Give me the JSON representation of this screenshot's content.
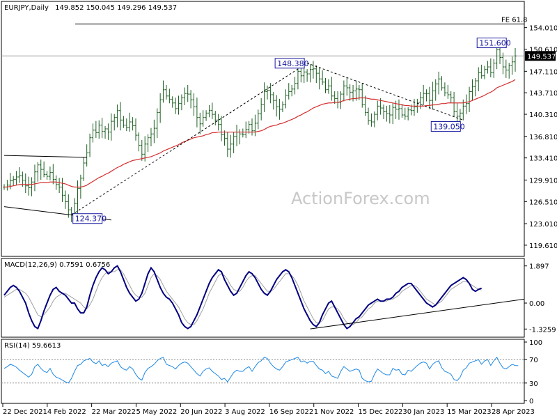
{
  "chart_data": {
    "type": "candlestick",
    "symbol_header": "EURJPY,Daily",
    "ohlc_header": "149.852 150.045 149.296 149.537",
    "watermark": "ActionForex.com",
    "last_price_label": "149.537",
    "x_tick_labels": [
      "22 Dec 2021",
      "4 Feb 2022",
      "22 Mar 2022",
      "5 May 2022",
      "20 Jun 2022",
      "3 Aug 2022",
      "16 Sep 2022",
      "1 Nov 2022",
      "15 Dec 2022",
      "30 Jan 2023",
      "15 Mar 2023",
      "28 Apr 2023"
    ],
    "price_panel": {
      "ylim": [
        118.5,
        157.5
      ],
      "y_tick_labels": [
        {
          "v": 154.01,
          "t": "154.010"
        },
        {
          "v": 150.61,
          "t": "150.610"
        },
        {
          "v": 147.11,
          "t": "147.110"
        },
        {
          "v": 143.71,
          "t": "143.710"
        },
        {
          "v": 140.31,
          "t": "140.310"
        },
        {
          "v": 136.81,
          "t": "136.810"
        },
        {
          "v": 133.41,
          "t": "133.410"
        },
        {
          "v": 129.91,
          "t": "129.910"
        },
        {
          "v": 126.51,
          "t": "126.510"
        },
        {
          "v": 123.01,
          "t": "123.010"
        },
        {
          "v": 119.61,
          "t": "119.610"
        }
      ],
      "close": [
        128.8,
        129.1,
        129.8,
        130.0,
        130.4,
        130.6,
        129.9,
        129.0,
        128.7,
        129.6,
        131.2,
        132.3,
        131.6,
        130.8,
        130.5,
        131.1,
        130.0,
        129.2,
        128.8,
        127.5,
        126.5,
        125.2,
        124.6,
        126.2,
        128.6,
        130.2,
        132.6,
        134.2,
        136.6,
        137.8,
        137.4,
        138.6,
        137.6,
        138.0,
        137.5,
        139.2,
        139.8,
        140.9,
        139.4,
        138.6,
        138.2,
        139.1,
        138.5,
        137.0,
        135.4,
        134.0,
        135.6,
        136.6,
        137.2,
        138.1,
        140.6,
        142.6,
        144.2,
        143.2,
        142.7,
        142.1,
        141.2,
        142.0,
        142.9,
        143.6,
        143.5,
        142.6,
        141.5,
        139.8,
        138.8,
        139.8,
        140.5,
        140.9,
        140.3,
        139.4,
        138.7,
        137.1,
        136.5,
        134.8,
        135.6,
        136.8,
        137.5,
        137.2,
        137.1,
        137.9,
        138.7,
        137.7,
        138.9,
        140.4,
        141.8,
        143.9,
        144.1,
        143.4,
        142.5,
        141.5,
        141.1,
        141.8,
        143.3,
        143.9,
        144.3,
        145.2,
        147.1,
        146.4,
        147.0,
        146.7,
        147.4,
        147.5,
        146.8,
        145.9,
        145.4,
        144.2,
        144.8,
        143.2,
        142.8,
        142.2,
        143.5,
        144.8,
        144.5,
        143.8,
        144.0,
        144.3,
        144.2,
        141.8,
        140.6,
        139.3,
        139.1,
        140.3,
        141.6,
        141.3,
        140.7,
        140.4,
        140.2,
        141.4,
        141.1,
        141.2,
        140.2,
        140.0,
        141.0,
        140.9,
        141.5,
        142.2,
        142.9,
        143.6,
        143.6,
        142.5,
        144.0,
        145.1,
        145.9,
        144.5,
        143.7,
        143.4,
        142.9,
        140.7,
        140.0,
        140.5,
        141.6,
        142.0,
        143.9,
        144.7,
        145.6,
        146.9,
        146.4,
        147.4,
        147.8,
        146.9,
        148.4,
        150.5,
        149.3,
        147.8,
        147.3,
        148.0,
        148.6,
        149.537
      ],
      "ma_red": [
        128.8,
        128.8,
        128.9,
        129.0,
        129.1,
        129.2,
        129.2,
        129.2,
        129.2,
        129.2,
        129.3,
        129.4,
        129.5,
        129.5,
        129.5,
        129.6,
        129.6,
        129.6,
        129.5,
        129.4,
        129.3,
        129.1,
        128.9,
        128.8,
        128.8,
        128.8,
        128.9,
        129.1,
        129.4,
        129.7,
        130.0,
        130.3,
        130.5,
        130.8,
        131.0,
        131.3,
        131.6,
        131.9,
        132.1,
        132.4,
        132.6,
        132.8,
        133.0,
        133.1,
        133.2,
        133.3,
        133.4,
        133.5,
        133.6,
        133.8,
        134.0,
        134.2,
        134.5,
        134.7,
        134.9,
        135.1,
        135.3,
        135.5,
        135.8,
        136.0,
        136.2,
        136.4,
        136.6,
        136.7,
        136.8,
        136.9,
        137.1,
        137.2,
        137.4,
        137.4,
        137.5,
        137.5,
        137.5,
        137.5,
        137.5,
        137.5,
        137.5,
        137.5,
        137.5,
        137.5,
        137.5,
        137.5,
        137.5,
        137.6,
        137.7,
        137.9,
        138.2,
        138.4,
        138.5,
        138.6,
        138.8,
        138.9,
        139.1,
        139.3,
        139.5,
        139.7,
        140.0,
        140.2,
        140.5,
        140.7,
        141.0,
        141.3,
        141.5,
        141.7,
        141.9,
        142.0,
        142.1,
        142.1,
        142.2,
        142.2,
        142.3,
        142.5,
        142.6,
        142.7,
        142.8,
        142.8,
        142.9,
        142.9,
        142.9,
        142.8,
        142.7,
        142.7,
        142.6,
        142.5,
        142.4,
        142.3,
        142.2,
        142.1,
        142.0,
        141.9,
        141.8,
        141.7,
        141.7,
        141.6,
        141.6,
        141.6,
        141.6,
        141.6,
        141.7,
        141.7,
        141.8,
        141.8,
        141.9,
        142.0,
        142.0,
        142.1,
        142.1,
        142.1,
        142.1,
        142.1,
        142.1,
        142.2,
        142.3,
        142.5,
        142.7,
        142.9,
        143.1,
        143.3,
        143.6,
        143.8,
        144.1,
        144.5,
        144.7,
        144.9,
        145.1,
        145.3,
        145.5,
        145.8
      ],
      "horizontal_levels": [
        {
          "value": 154.6,
          "label": "FE 61.8"
        },
        {
          "value": 149.537,
          "label": ""
        }
      ],
      "annotations": [
        {
          "text": "151.600",
          "value": 151.6,
          "index": 165
        },
        {
          "text": "148.380",
          "value": 148.38,
          "index": 99
        },
        {
          "text": "139.050",
          "value": 139.05,
          "index": 150
        },
        {
          "text": "124.370",
          "value": 124.37,
          "index": 22
        }
      ],
      "trendlines": [
        {
          "style": "solid",
          "from": [
            0,
            133.8
          ],
          "to": [
            27,
            133.5
          ]
        },
        {
          "style": "solid",
          "from": [
            0,
            125.7
          ],
          "to": [
            35,
            123.6
          ]
        },
        {
          "style": "dashed",
          "from": [
            22,
            124.4
          ],
          "to": [
            99,
            148.4
          ]
        },
        {
          "style": "dashed",
          "from": [
            99,
            148.4
          ],
          "to": [
            150,
            139.4
          ]
        }
      ]
    },
    "macd_panel": {
      "title": "MACD(12,26,9) 0.7591 0.6756",
      "ylim": [
        -1.6,
        2.1
      ],
      "y_tick_labels": [
        {
          "v": 1.897,
          "t": "1.897"
        },
        {
          "v": 0.0,
          "t": "0.00"
        },
        {
          "v": -1.3259,
          "t": "-1.3259"
        }
      ],
      "macd": [
        0.4,
        0.6,
        0.8,
        0.9,
        0.8,
        0.6,
        0.3,
        0.0,
        -0.5,
        -0.9,
        -1.2,
        -1.3,
        -0.9,
        -0.4,
        0.0,
        0.4,
        0.7,
        0.8,
        0.6,
        0.5,
        0.4,
        0.2,
        0.0,
        0.0,
        -0.3,
        -0.5,
        -0.5,
        -0.2,
        0.4,
        0.9,
        1.3,
        1.6,
        1.8,
        1.7,
        1.5,
        1.6,
        1.8,
        1.9,
        1.6,
        1.2,
        0.8,
        0.5,
        0.3,
        0.1,
        0.2,
        0.5,
        1.0,
        1.5,
        1.8,
        1.6,
        1.2,
        0.8,
        0.5,
        0.3,
        0.2,
        0.0,
        -0.3,
        -0.6,
        -1.0,
        -1.2,
        -1.3,
        -1.2,
        -0.9,
        -0.6,
        -0.2,
        0.2,
        0.6,
        1.0,
        1.3,
        1.5,
        1.7,
        1.6,
        1.2,
        0.9,
        0.6,
        0.4,
        0.5,
        0.8,
        1.1,
        1.4,
        1.6,
        1.5,
        1.3,
        1.0,
        0.7,
        0.5,
        0.4,
        0.6,
        0.9,
        1.2,
        1.4,
        1.6,
        1.7,
        1.6,
        1.3,
        0.9,
        0.5,
        0.1,
        -0.3,
        -0.6,
        -0.9,
        -1.1,
        -1.2,
        -1.0,
        -0.6,
        -0.3,
        0.0,
        0.1,
        -0.2,
        -0.5,
        -0.8,
        -1.1,
        -1.3,
        -1.2,
        -1.0,
        -0.8,
        -0.7,
        -0.5,
        -0.3,
        -0.1,
        0.0,
        0.1,
        0.2,
        0.1,
        0.1,
        0.2,
        0.2,
        0.3,
        0.5,
        0.6,
        0.8,
        0.9,
        1.0,
        1.0,
        0.8,
        0.6,
        0.4,
        0.2,
        0.0,
        -0.1,
        -0.2,
        -0.1,
        0.1,
        0.3,
        0.5,
        0.7,
        0.9,
        1.0,
        1.1,
        1.2,
        1.3,
        1.2,
        1.0,
        0.7,
        0.6,
        0.7,
        0.76
      ],
      "signal": [
        0.3,
        0.4,
        0.5,
        0.6,
        0.7,
        0.7,
        0.6,
        0.5,
        0.3,
        0.0,
        -0.3,
        -0.6,
        -0.7,
        -0.6,
        -0.4,
        -0.2,
        0.1,
        0.3,
        0.4,
        0.5,
        0.5,
        0.4,
        0.3,
        0.2,
        0.1,
        0.0,
        -0.2,
        -0.3,
        -0.1,
        0.2,
        0.6,
        1.0,
        1.3,
        1.5,
        1.6,
        1.6,
        1.6,
        1.7,
        1.7,
        1.5,
        1.2,
        0.9,
        0.6,
        0.4,
        0.3,
        0.3,
        0.5,
        0.9,
        1.3,
        1.5,
        1.4,
        1.2,
        0.9,
        0.6,
        0.4,
        0.2,
        0.0,
        -0.2,
        -0.5,
        -0.8,
        -1.0,
        -1.1,
        -1.1,
        -0.9,
        -0.6,
        -0.3,
        0.1,
        0.5,
        0.8,
        1.1,
        1.4,
        1.5,
        1.4,
        1.2,
        0.9,
        0.7,
        0.6,
        0.6,
        0.8,
        1.1,
        1.3,
        1.4,
        1.4,
        1.2,
        1.0,
        0.8,
        0.6,
        0.6,
        0.7,
        0.9,
        1.1,
        1.3,
        1.5,
        1.5,
        1.4,
        1.2,
        0.9,
        0.5,
        0.1,
        -0.2,
        -0.5,
        -0.8,
        -1.0,
        -1.0,
        -0.9,
        -0.6,
        -0.3,
        -0.2,
        -0.2,
        -0.3,
        -0.5,
        -0.8,
        -1.0,
        -1.1,
        -1.1,
        -1.0,
        -0.8,
        -0.7,
        -0.5,
        -0.3,
        -0.2,
        0.0,
        0.1,
        0.1,
        0.1,
        0.1,
        0.2,
        0.2,
        0.3,
        0.4,
        0.6,
        0.7,
        0.8,
        0.9,
        0.9,
        0.8,
        0.6,
        0.4,
        0.2,
        0.1,
        0.0,
        -0.1,
        0.0,
        0.1,
        0.3,
        0.5,
        0.7,
        0.8,
        0.9,
        1.0,
        1.1,
        1.1,
        1.0,
        0.9,
        0.8,
        0.7,
        0.6756
      ],
      "trendlines": [
        {
          "style": "solid",
          "from": [
            100,
            -1.32
          ],
          "to": [
            173,
            0.2
          ]
        }
      ]
    },
    "rsi_panel": {
      "title": "RSI(14) 59.6613",
      "ylim": [
        0,
        100
      ],
      "y_tick_labels": [
        {
          "v": 100,
          "t": "100"
        },
        {
          "v": 70,
          "t": "70"
        },
        {
          "v": 30,
          "t": "30"
        },
        {
          "v": 0,
          "t": "0"
        }
      ],
      "levels": [
        70,
        30
      ],
      "rsi": [
        55,
        58,
        62,
        60,
        57,
        52,
        48,
        44,
        40,
        45,
        58,
        62,
        55,
        50,
        48,
        55,
        45,
        40,
        38,
        35,
        32,
        30,
        38,
        50,
        60,
        62,
        68,
        70,
        72,
        66,
        63,
        68,
        60,
        62,
        58,
        64,
        66,
        68,
        58,
        54,
        52,
        58,
        54,
        45,
        38,
        35,
        48,
        55,
        58,
        62,
        68,
        72,
        74,
        62,
        60,
        58,
        54,
        60,
        64,
        66,
        64,
        58,
        52,
        46,
        42,
        50,
        54,
        56,
        50,
        46,
        42,
        36,
        38,
        32,
        40,
        48,
        52,
        50,
        50,
        55,
        58,
        50,
        58,
        65,
        68,
        74,
        72,
        64,
        58,
        54,
        52,
        58,
        66,
        68,
        70,
        72,
        74,
        66,
        68,
        64,
        67,
        67,
        60,
        54,
        52,
        46,
        50,
        42,
        40,
        38,
        50,
        58,
        54,
        50,
        52,
        54,
        52,
        38,
        34,
        32,
        33,
        45,
        54,
        50,
        46,
        44,
        44,
        55,
        52,
        53,
        45,
        44,
        52,
        50,
        55,
        60,
        64,
        66,
        64,
        54,
        62,
        66,
        68,
        56,
        50,
        48,
        45,
        36,
        34,
        40,
        52,
        56,
        64,
        66,
        68,
        70,
        62,
        68,
        70,
        60,
        68,
        74,
        64,
        56,
        54,
        58,
        62,
        60,
        59.66
      ]
    }
  }
}
